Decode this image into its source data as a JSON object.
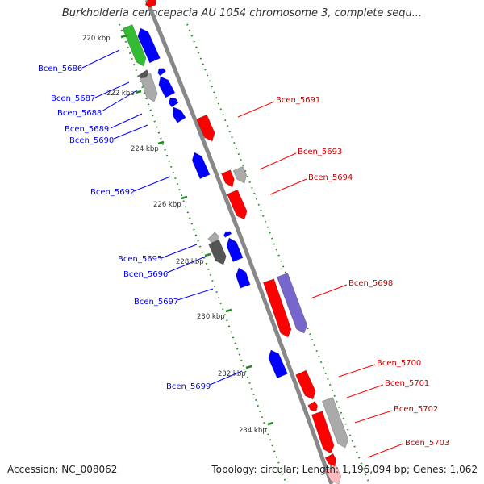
{
  "title": "Burkholderia cenocepacia AU 1054 chromosome 3, complete sequ...",
  "footer": {
    "accession": "Accession: NC_008062",
    "stats": "Topology: circular; Length: 1,196,094 bp; Genes: 1,062"
  },
  "colors": {
    "forward_gene": "#ff0000",
    "reverse_gene": "#0000ff",
    "green_gene": "#33bb33",
    "gray_gene": "#aaaaaa",
    "dark_gray_gene": "#555555",
    "purple_gene": "#7766cc",
    "backbone": "#888888",
    "tick": "#228822"
  },
  "scale_labels": [
    "220 kbp",
    "222 kbp",
    "224 kbp",
    "226 kbp",
    "228 kbp",
    "230 kbp",
    "232 kbp",
    "234 kbp"
  ],
  "gene_labels": {
    "left": [
      "Bcen_5686",
      "Bcen_5687",
      "Bcen_5688",
      "Bcen_5689",
      "Bcen_5690",
      "Bcen_5692",
      "Bcen_5695",
      "Bcen_5696",
      "Bcen_5697",
      "Bcen_5699"
    ],
    "right": [
      "Bcen_5691",
      "Bcen_5693",
      "Bcen_5694",
      "Bcen_5698",
      "Bcen_5700",
      "Bcen_5701",
      "Bcen_5702",
      "Bcen_5703"
    ]
  }
}
